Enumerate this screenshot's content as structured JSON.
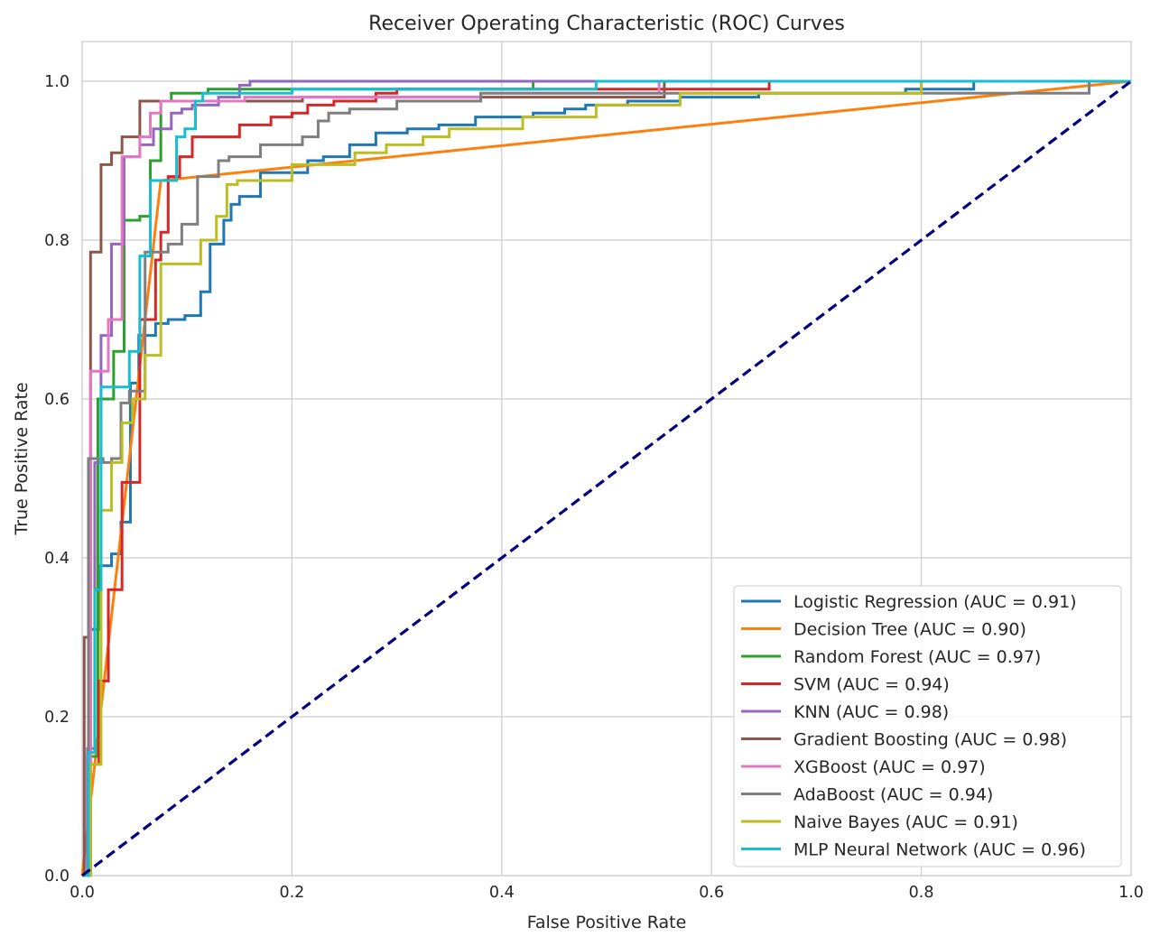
{
  "chart_data": {
    "type": "line",
    "title": "Receiver Operating Characteristic (ROC) Curves",
    "xlabel": "False Positive Rate",
    "ylabel": "True Positive Rate",
    "xlim": [
      0,
      1
    ],
    "ylim": [
      0,
      1.05
    ],
    "xticks": [
      "0.0",
      "0.2",
      "0.4",
      "0.6",
      "0.8",
      "1.0"
    ],
    "yticks": [
      "0.0",
      "0.2",
      "0.4",
      "0.6",
      "0.8",
      "1.0"
    ],
    "grid": true,
    "legend_position": "lower-right",
    "reference_line": {
      "x": [
        0,
        1
      ],
      "y": [
        0,
        1
      ],
      "color": "#000080",
      "style": "dashed"
    },
    "series": [
      {
        "name": "Logistic Regression (AUC = 0.91)",
        "color": "#1f77b4",
        "x": [
          0,
          0.008,
          0.008,
          0.016,
          0.016,
          0.028,
          0.028,
          0.037,
          0.037,
          0.046,
          0.046,
          0.054,
          0.054,
          0.07,
          0.07,
          0.082,
          0.082,
          0.098,
          0.098,
          0.113,
          0.113,
          0.122,
          0.122,
          0.135,
          0.135,
          0.142,
          0.142,
          0.15,
          0.15,
          0.17,
          0.17,
          0.215,
          0.215,
          0.23,
          0.23,
          0.255,
          0.255,
          0.28,
          0.28,
          0.31,
          0.31,
          0.34,
          0.34,
          0.375,
          0.375,
          0.43,
          0.43,
          0.46,
          0.46,
          0.48,
          0.48,
          0.52,
          0.52,
          0.57,
          0.57,
          0.645,
          0.645,
          0.785,
          0.785,
          0.85,
          0.85,
          1.0
        ],
        "y": [
          0,
          0,
          0.31,
          0.31,
          0.39,
          0.39,
          0.405,
          0.405,
          0.445,
          0.445,
          0.62,
          0.62,
          0.68,
          0.68,
          0.695,
          0.695,
          0.7,
          0.7,
          0.705,
          0.705,
          0.735,
          0.735,
          0.795,
          0.795,
          0.825,
          0.825,
          0.845,
          0.845,
          0.855,
          0.855,
          0.885,
          0.885,
          0.9,
          0.9,
          0.905,
          0.905,
          0.92,
          0.92,
          0.935,
          0.935,
          0.94,
          0.94,
          0.945,
          0.945,
          0.955,
          0.955,
          0.96,
          0.96,
          0.965,
          0.965,
          0.97,
          0.97,
          0.975,
          0.975,
          0.98,
          0.98,
          0.985,
          0.985,
          0.99,
          0.99,
          1.0,
          1.0
        ]
      },
      {
        "name": "Decision Tree (AUC = 0.90)",
        "color": "#ff7f0e",
        "x": [
          0,
          0.075,
          1.0
        ],
        "y": [
          0,
          0.875,
          1.0
        ]
      },
      {
        "name": "Random Forest (AUC = 0.97)",
        "color": "#2ca02c",
        "x": [
          0,
          0.005,
          0.005,
          0.015,
          0.015,
          0.03,
          0.03,
          0.04,
          0.04,
          0.055,
          0.055,
          0.065,
          0.065,
          0.075,
          0.075,
          0.085,
          0.085,
          0.12,
          0.12,
          0.43,
          0.43,
          1.0
        ],
        "y": [
          0,
          0,
          0.15,
          0.15,
          0.6,
          0.6,
          0.66,
          0.66,
          0.825,
          0.825,
          0.83,
          0.83,
          0.9,
          0.9,
          0.975,
          0.975,
          0.985,
          0.985,
          0.99,
          0.99,
          1.0,
          1.0
        ],
        "x2": [
          0.12,
          0.43
        ]
      },
      {
        "name": "SVM (AUC = 0.94)",
        "color": "#d62728",
        "x": [
          0,
          0.008,
          0.008,
          0.016,
          0.016,
          0.025,
          0.025,
          0.038,
          0.038,
          0.055,
          0.055,
          0.07,
          0.07,
          0.075,
          0.075,
          0.082,
          0.082,
          0.093,
          0.093,
          0.105,
          0.105,
          0.15,
          0.15,
          0.18,
          0.18,
          0.2,
          0.2,
          0.215,
          0.215,
          0.24,
          0.24,
          0.28,
          0.28,
          0.3,
          0.3,
          0.655,
          0.655,
          1.0
        ],
        "y": [
          0,
          0,
          0.14,
          0.14,
          0.245,
          0.245,
          0.36,
          0.36,
          0.495,
          0.495,
          0.7,
          0.7,
          0.775,
          0.775,
          0.81,
          0.81,
          0.88,
          0.88,
          0.905,
          0.905,
          0.93,
          0.93,
          0.945,
          0.945,
          0.955,
          0.955,
          0.96,
          0.96,
          0.97,
          0.97,
          0.975,
          0.975,
          0.985,
          0.985,
          0.99,
          0.99,
          1.0,
          1.0
        ]
      },
      {
        "name": "KNN (AUC = 0.98)",
        "color": "#9467bd",
        "x": [
          0,
          0.005,
          0.005,
          0.012,
          0.012,
          0.018,
          0.018,
          0.028,
          0.028,
          0.04,
          0.04,
          0.055,
          0.055,
          0.068,
          0.068,
          0.085,
          0.085,
          0.095,
          0.095,
          0.105,
          0.105,
          0.13,
          0.13,
          0.15,
          0.15,
          0.16,
          0.16,
          0.43,
          0.43,
          1.0
        ],
        "y": [
          0,
          0,
          0.16,
          0.16,
          0.52,
          0.52,
          0.68,
          0.68,
          0.795,
          0.795,
          0.905,
          0.905,
          0.92,
          0.92,
          0.94,
          0.94,
          0.96,
          0.96,
          0.965,
          0.965,
          0.97,
          0.97,
          0.98,
          0.98,
          0.995,
          0.995,
          1.0,
          1.0,
          1.0,
          1.0
        ]
      },
      {
        "name": "Gradient Boosting (AUC = 0.98)",
        "color": "#8c564b",
        "x": [
          0,
          0.002,
          0.002,
          0.008,
          0.008,
          0.018,
          0.018,
          0.028,
          0.028,
          0.038,
          0.038,
          0.055,
          0.055,
          0.21,
          0.21,
          0.555,
          0.555,
          1.0
        ],
        "y": [
          0,
          0,
          0.3,
          0.3,
          0.785,
          0.785,
          0.895,
          0.895,
          0.91,
          0.91,
          0.93,
          0.93,
          0.975,
          0.975,
          0.98,
          0.98,
          1.0,
          1.0
        ]
      },
      {
        "name": "XGBoost (AUC = 0.97)",
        "color": "#e377c2",
        "x": [
          0,
          0.008,
          0.008,
          0.025,
          0.025,
          0.038,
          0.038,
          0.055,
          0.055,
          0.065,
          0.065,
          0.075,
          0.075,
          0.155,
          0.155,
          0.38,
          0.38,
          0.55,
          0.55,
          1.0
        ],
        "y": [
          0,
          0,
          0.635,
          0.635,
          0.7,
          0.7,
          0.905,
          0.905,
          0.93,
          0.93,
          0.96,
          0.96,
          0.975,
          0.975,
          0.98,
          0.98,
          0.985,
          0.985,
          1.0,
          1.0
        ]
      },
      {
        "name": "AdaBoost (AUC = 0.94)",
        "color": "#7f7f7f",
        "x": [
          0,
          0.006,
          0.006,
          0.02,
          0.02,
          0.028,
          0.028,
          0.037,
          0.037,
          0.045,
          0.045,
          0.06,
          0.06,
          0.082,
          0.082,
          0.095,
          0.095,
          0.11,
          0.11,
          0.13,
          0.13,
          0.14,
          0.14,
          0.17,
          0.17,
          0.21,
          0.21,
          0.225,
          0.225,
          0.235,
          0.235,
          0.255,
          0.255,
          0.3,
          0.3,
          0.38,
          0.38,
          0.96,
          0.96,
          1.0
        ],
        "y": [
          0,
          0,
          0.525,
          0.525,
          0.52,
          0.52,
          0.525,
          0.525,
          0.595,
          0.595,
          0.61,
          0.61,
          0.785,
          0.785,
          0.795,
          0.795,
          0.82,
          0.82,
          0.88,
          0.88,
          0.9,
          0.9,
          0.905,
          0.905,
          0.92,
          0.92,
          0.93,
          0.93,
          0.95,
          0.95,
          0.96,
          0.96,
          0.965,
          0.965,
          0.975,
          0.975,
          0.985,
          0.985,
          1.0,
          1.0
        ]
      },
      {
        "name": "Naive Bayes (AUC = 0.91)",
        "color": "#bcbd22",
        "x": [
          0,
          0.008,
          0.008,
          0.018,
          0.018,
          0.028,
          0.028,
          0.038,
          0.038,
          0.048,
          0.048,
          0.06,
          0.06,
          0.075,
          0.075,
          0.113,
          0.113,
          0.128,
          0.128,
          0.138,
          0.138,
          0.148,
          0.148,
          0.2,
          0.2,
          0.26,
          0.26,
          0.29,
          0.29,
          0.325,
          0.325,
          0.35,
          0.35,
          0.42,
          0.42,
          0.49,
          0.49,
          0.57,
          0.57,
          0.8,
          0.8,
          1.0
        ],
        "y": [
          0,
          0,
          0.14,
          0.14,
          0.46,
          0.46,
          0.52,
          0.52,
          0.57,
          0.57,
          0.6,
          0.6,
          0.655,
          0.655,
          0.77,
          0.77,
          0.8,
          0.8,
          0.83,
          0.83,
          0.87,
          0.87,
          0.875,
          0.875,
          0.895,
          0.895,
          0.91,
          0.91,
          0.92,
          0.92,
          0.93,
          0.93,
          0.94,
          0.94,
          0.955,
          0.955,
          0.97,
          0.97,
          0.985,
          0.985,
          1.0,
          1.0
        ]
      },
      {
        "name": "MLP Neural Network (AUC = 0.96)",
        "color": "#17becf",
        "x": [
          0,
          0.006,
          0.006,
          0.012,
          0.012,
          0.018,
          0.018,
          0.045,
          0.045,
          0.055,
          0.055,
          0.065,
          0.065,
          0.09,
          0.09,
          0.098,
          0.098,
          0.108,
          0.108,
          0.115,
          0.115,
          0.2,
          0.2,
          0.49,
          0.49,
          1.0
        ],
        "y": [
          0,
          0,
          0.155,
          0.155,
          0.36,
          0.36,
          0.615,
          0.615,
          0.66,
          0.66,
          0.78,
          0.78,
          0.875,
          0.875,
          0.93,
          0.93,
          0.94,
          0.94,
          0.975,
          0.975,
          0.985,
          0.985,
          0.99,
          0.99,
          1.0,
          1.0
        ]
      }
    ]
  }
}
